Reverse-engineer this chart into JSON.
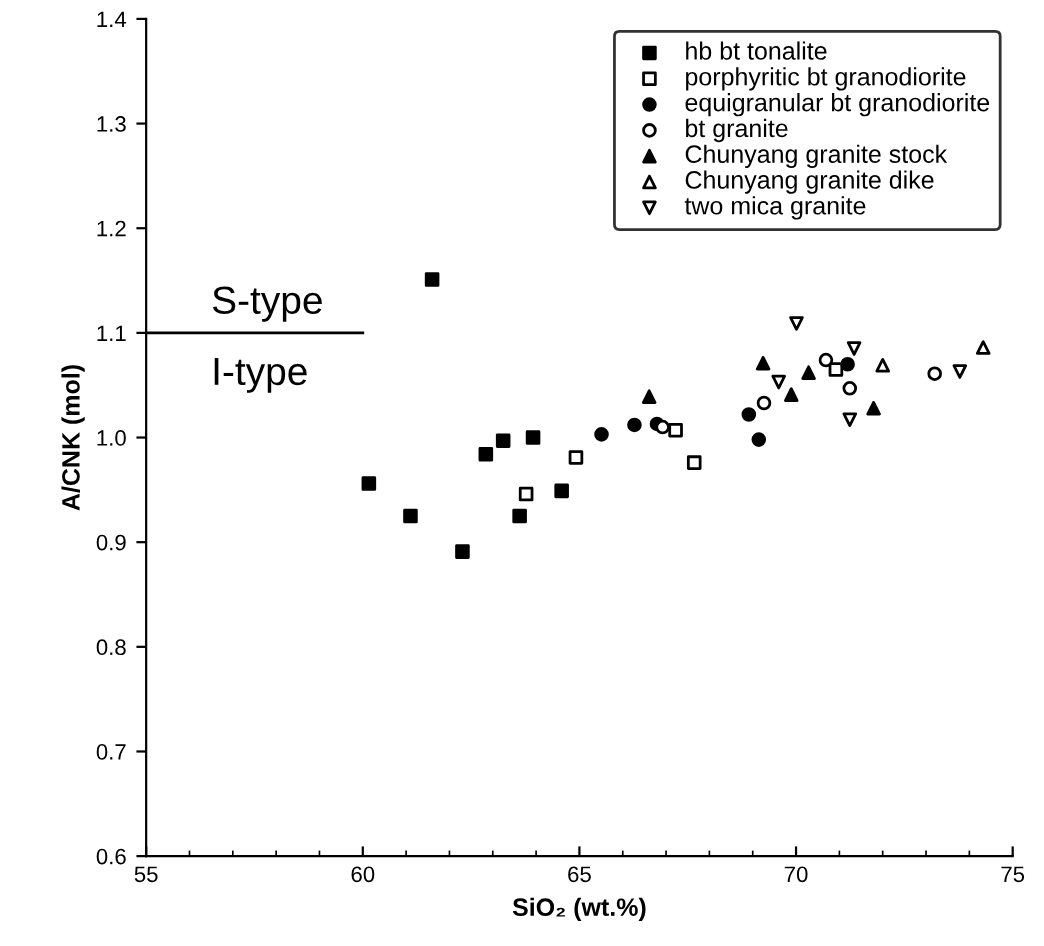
{
  "chart_data": {
    "type": "scatter",
    "xlabel": "SiO₂ (wt.%)",
    "ylabel": "A/CNK (mol)",
    "xlim": [
      55,
      75
    ],
    "xticks": [
      55,
      60,
      65,
      70,
      75
    ],
    "ylim": [
      0.6,
      1.4
    ],
    "yticks": [
      0.6,
      0.7,
      0.8,
      0.9,
      {
        "value": 1.0,
        "label": "1.0"
      },
      1.1,
      1.2,
      1.3,
      1.4
    ],
    "grid": false,
    "legend": "top right",
    "ref_lines": [
      {
        "axis": "y",
        "value": 1.1,
        "color": "#000000"
      }
    ],
    "annotations": [
      "S-type",
      "I-type"
    ],
    "series": [
      {
        "name": "hb bt tonalite",
        "color": "#000000",
        "marker": "square",
        "x": [
          60.14,
          61.1,
          61.6,
          62.3,
          62.84,
          63.24,
          63.62,
          63.93,
          64.59
        ],
        "values": [
          0.956,
          0.925,
          1.151,
          0.891,
          0.984,
          0.997,
          0.925,
          1.0,
          0.949
        ]
      },
      {
        "name": "porphyritic bt granodiorite",
        "color": "#000000",
        "marker": "square-open",
        "x": [
          63.77,
          64.92,
          67.22,
          67.65,
          70.92
        ],
        "values": [
          0.946,
          0.981,
          1.007,
          0.976,
          1.065
        ]
      },
      {
        "name": "equigranular bt granodiorite",
        "color": "#000000",
        "marker": "circle",
        "x": [
          65.51,
          66.27,
          66.79,
          68.91,
          69.14,
          71.19
        ],
        "values": [
          1.003,
          1.012,
          1.013,
          1.022,
          0.998,
          1.07
        ]
      },
      {
        "name": "bt granite",
        "color": "#000000",
        "marker": "circle-open",
        "x": [
          66.92,
          69.26,
          70.69,
          71.24,
          73.2
        ],
        "values": [
          1.01,
          1.033,
          1.074,
          1.047,
          1.061
        ]
      },
      {
        "name": "Chunyang granite stock",
        "color": "#000000",
        "marker": "triangle",
        "x": [
          66.61,
          69.24,
          69.89,
          70.29,
          71.79
        ],
        "values": [
          1.039,
          1.071,
          1.041,
          1.062,
          1.028
        ]
      },
      {
        "name": "Chunyang granite dike",
        "color": "#000000",
        "marker": "triangle-open",
        "x": [
          72.0,
          74.32
        ],
        "values": [
          1.069,
          1.086
        ]
      },
      {
        "name": "two mica granite",
        "color": "#000000",
        "marker": "triangle-down-open",
        "x": [
          69.6,
          70.01,
          71.34,
          71.24,
          73.78
        ],
        "values": [
          1.053,
          1.109,
          1.085,
          1.017,
          1.063
        ]
      }
    ]
  }
}
